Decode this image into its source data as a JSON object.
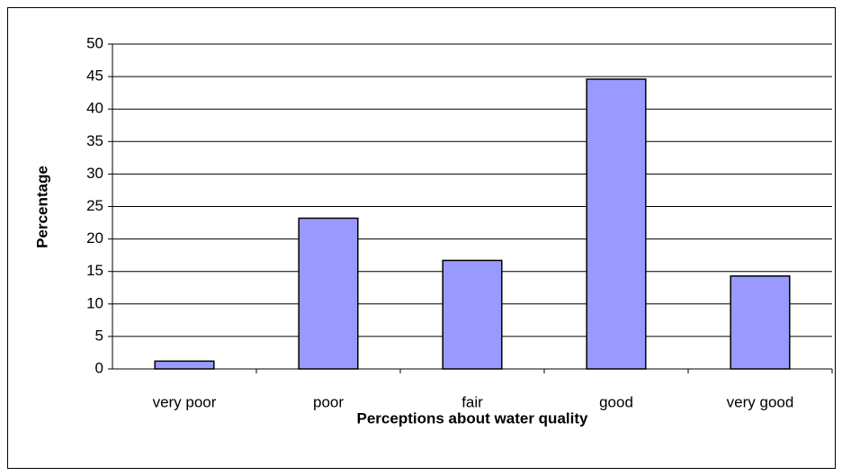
{
  "chart_data": {
    "type": "bar",
    "xlabel": "Perceptions about water quality",
    "ylabel": "Percentage",
    "categories": [
      "very poor",
      "poor",
      "fair",
      "good",
      "very good"
    ],
    "values": [
      1.2,
      23.2,
      16.7,
      44.6,
      14.3
    ],
    "color": "#9999ff",
    "ylim": [
      0,
      50
    ],
    "yticks": [
      0,
      5,
      10,
      15,
      20,
      25,
      30,
      35,
      40,
      45,
      50
    ],
    "grid": true
  }
}
